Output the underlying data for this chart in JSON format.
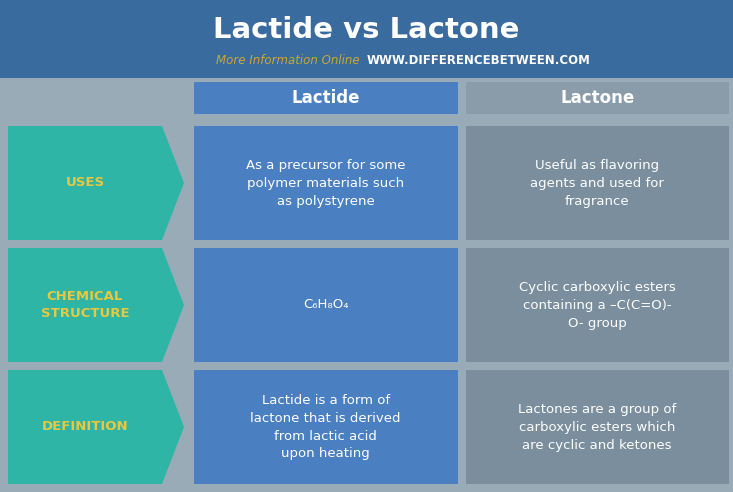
{
  "title": "Lactide vs Lactone",
  "subtitle_normal": "More Information Online",
  "subtitle_url": "WWW.DIFFERENCEBETWEEN.COM",
  "title_bg_color": "#3a6b9e",
  "header_lactide_bg": "#4a7fc1",
  "header_lactone_bg": "#8a9baa",
  "left_arrow_bg": "#2fb5a5",
  "lactide_cell_bg": "#4a7fc1",
  "lactone_cell_bg": "#7a8e9e",
  "bg_color": "#9aabb8",
  "header_text_color": "#ffffff",
  "left_label_color": "#e8c840",
  "cell_text_color": "#ffffff",
  "title_color": "#ffffff",
  "subtitle_normal_color": "#c8a830",
  "subtitle_url_color": "#ffffff",
  "rows": [
    {
      "label": "DEFINITION",
      "lactide": "Lactide is a form of\nlactone that is derived\nfrom lactic acid\nupon heating",
      "lactone": "Lactones are a group of\ncarboxylic esters which\nare cyclic and ketones"
    },
    {
      "label": "CHEMICAL\nSTRUCTURE",
      "lactide": "C₆H₈O₄",
      "lactone": "Cyclic carboxylic esters\ncontaining a –C(C=O)-\nO- group"
    },
    {
      "label": "USES",
      "lactide": "As a precursor for some\npolymer materials such\nas polystyrene",
      "lactone": "Useful as flavoring\nagents and used for\nfragrance"
    }
  ],
  "fig_w": 7.33,
  "fig_h": 4.92,
  "dpi": 100
}
